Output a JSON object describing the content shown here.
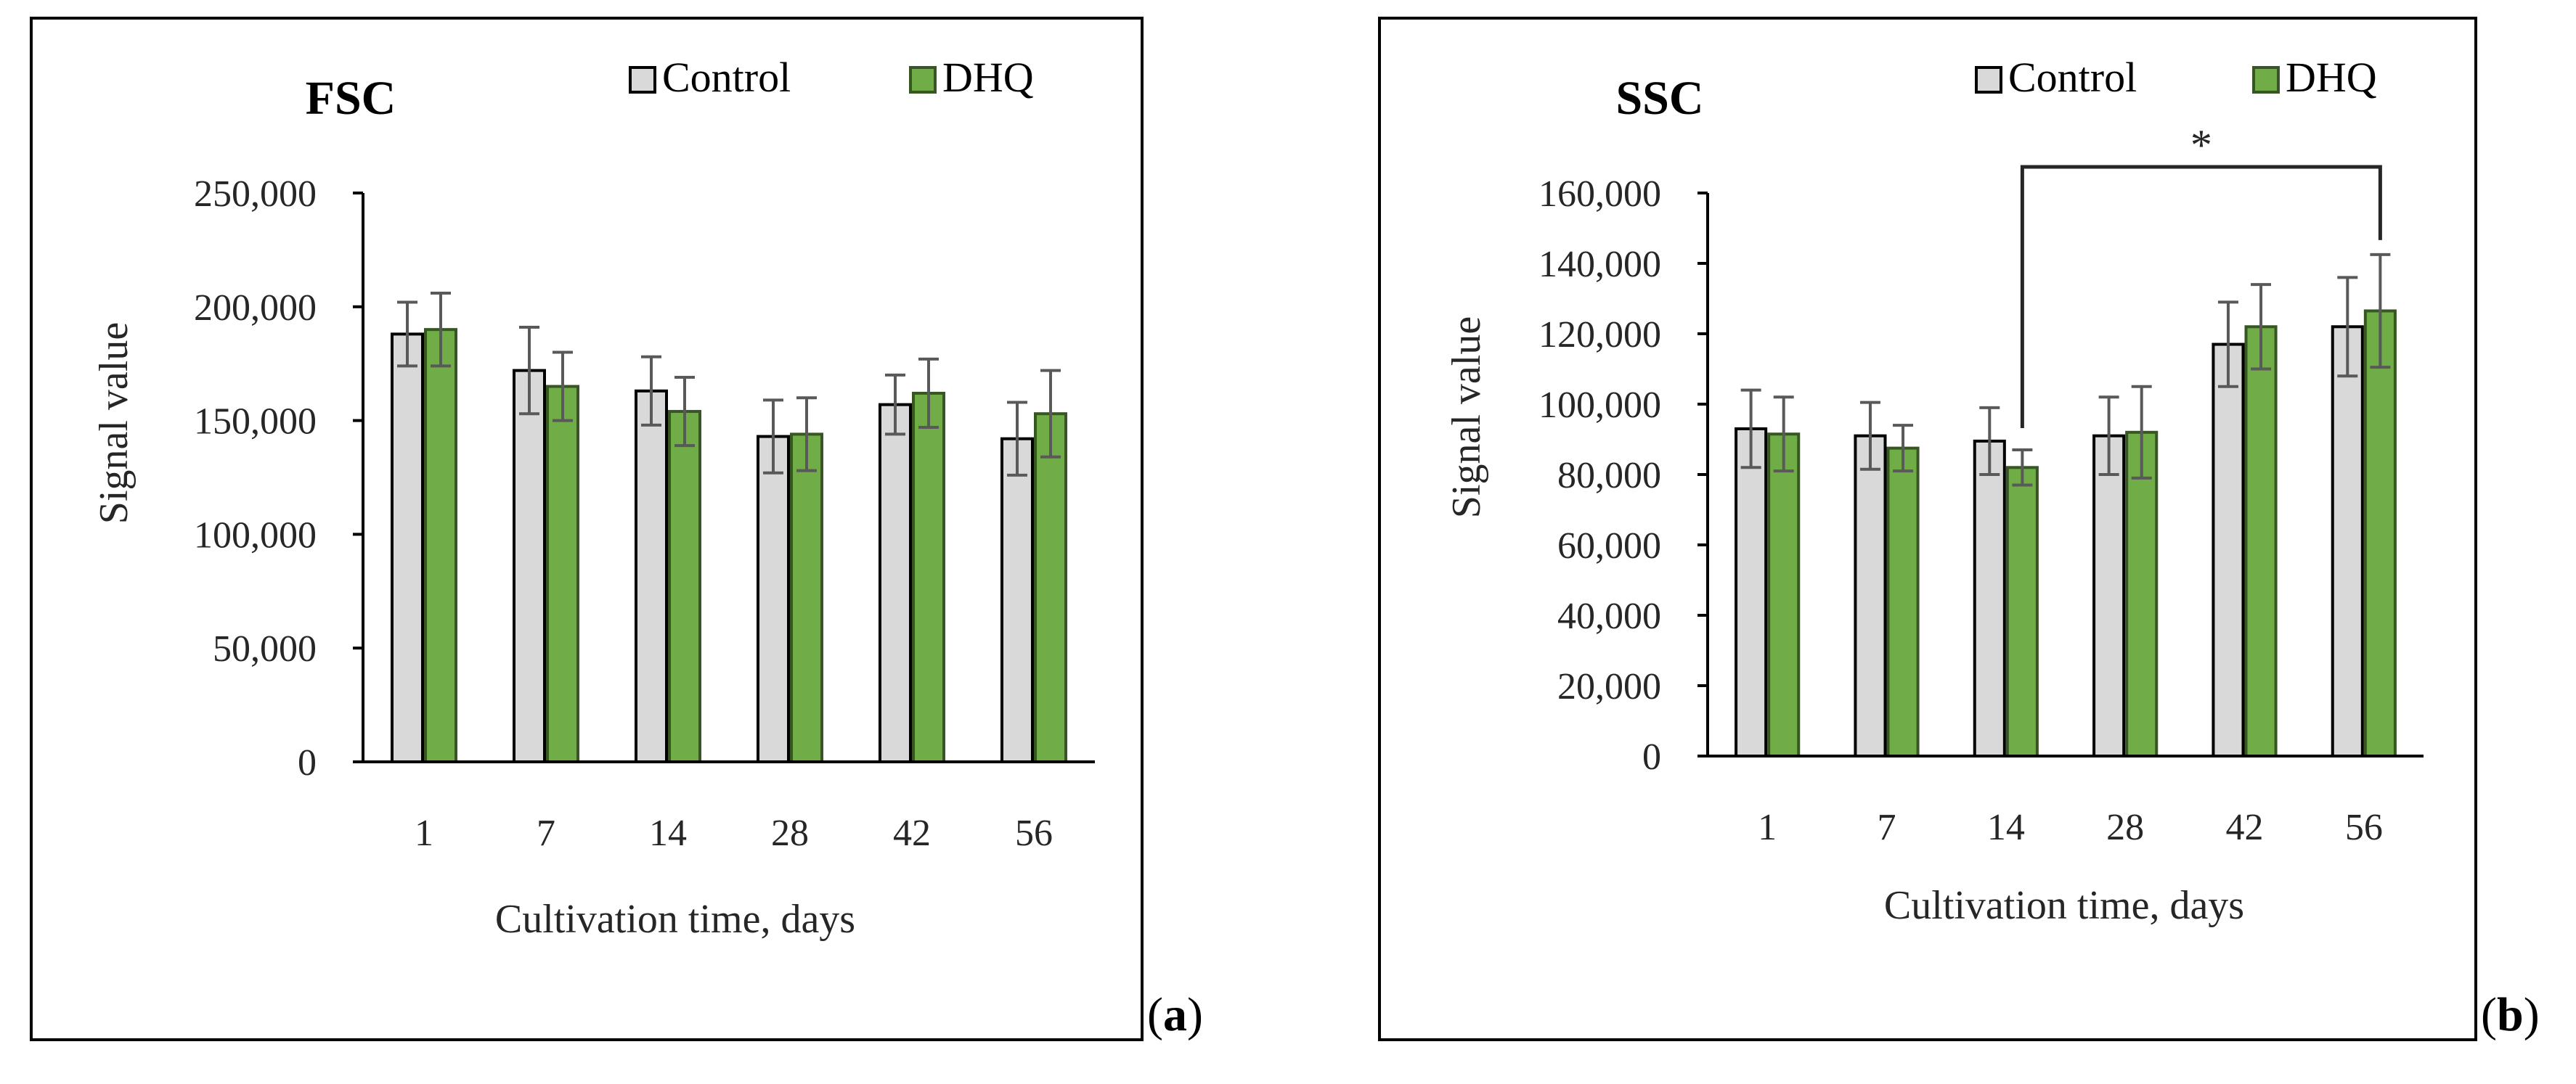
{
  "colors": {
    "control": "#d9d9d9",
    "dhq": "#70ad47",
    "dhq_edge": "#375623",
    "control_edge": "#000000",
    "errorbar": "#595959"
  },
  "panels": [
    {
      "label": "a"
    },
    {
      "label": "b"
    }
  ],
  "chart_data": [
    {
      "type": "bar",
      "title": "FSC",
      "xlabel": "Cultivation time, days",
      "ylabel": "Signal value",
      "categories": [
        "1",
        "7",
        "14",
        "28",
        "42",
        "56"
      ],
      "ylim": [
        0,
        250000
      ],
      "yticks": [
        0,
        50000,
        100000,
        150000,
        200000,
        250000
      ],
      "ytick_labels": [
        "0",
        "50,000",
        "100,000",
        "150,000",
        "200,000",
        "250,000"
      ],
      "legend_position": "top-right",
      "grid": false,
      "series": [
        {
          "name": "Control",
          "values": [
            188000,
            172000,
            163000,
            143000,
            157000,
            142000
          ],
          "errors": [
            14000,
            19000,
            15000,
            16000,
            13000,
            16000
          ]
        },
        {
          "name": "DHQ",
          "values": [
            190000,
            165000,
            154000,
            144000,
            162000,
            153000
          ],
          "errors": [
            16000,
            15000,
            15000,
            16000,
            15000,
            19000
          ]
        }
      ]
    },
    {
      "type": "bar",
      "title": "SSC",
      "xlabel": "Cultivation time, days",
      "ylabel": "Signal value",
      "categories": [
        "1",
        "7",
        "14",
        "28",
        "42",
        "56"
      ],
      "ylim": [
        0,
        160000
      ],
      "yticks": [
        0,
        20000,
        40000,
        60000,
        80000,
        100000,
        120000,
        140000,
        160000
      ],
      "ytick_labels": [
        "0",
        "20,000",
        "40,000",
        "60,000",
        "80,000",
        "100,000",
        "120,000",
        "140,000",
        "160,000"
      ],
      "legend_position": "top-right",
      "grid": false,
      "series": [
        {
          "name": "Control",
          "values": [
            93000,
            91000,
            89500,
            91000,
            117000,
            122000
          ],
          "errors": [
            11000,
            9500,
            9500,
            11000,
            12000,
            14000
          ]
        },
        {
          "name": "DHQ",
          "values": [
            91500,
            87500,
            82000,
            92000,
            122000,
            126500
          ],
          "errors": [
            10500,
            6500,
            5000,
            13000,
            12000,
            16000
          ]
        }
      ],
      "annotations": [
        {
          "text": "*",
          "from_category": "14",
          "to_category": "56"
        }
      ]
    }
  ]
}
